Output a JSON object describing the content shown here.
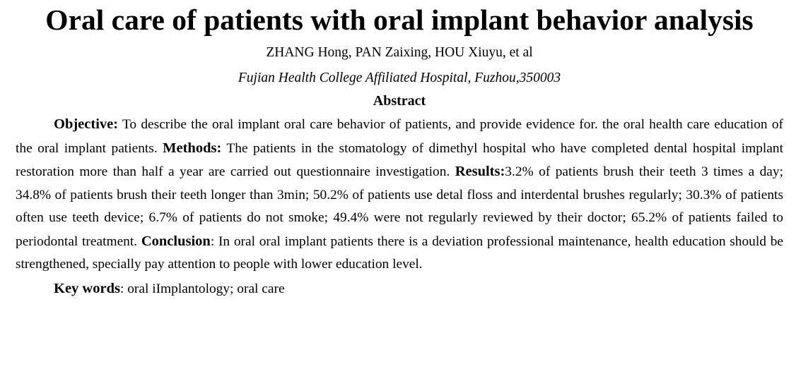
{
  "paper": {
    "title": "Oral care of patients with oral implant behavior analysis",
    "authors": "ZHANG Hong, PAN Zaixing, HOU Xiuyu, et al",
    "affiliation": "Fujian Health College Affiliated Hospital, Fuzhou,350003",
    "abstract_heading": "Abstract",
    "abstract": {
      "objective_label": "Objective:",
      "objective_text": " To describe the oral implant oral care behavior of patients, and provide evidence for. the oral health care education of the oral implant patients. ",
      "methods_label": "Methods:",
      "methods_text": " The patients in the stomatology of dimethyl hospital who have completed dental hospital implant restoration more than half a year are carried out questionnaire investigation. ",
      "results_label": "Results:",
      "results_text": "3.2% of patients brush their teeth 3 times a day; 34.8% of patients brush their teeth longer than 3min; 50.2% of patients use detal floss and interdental brushes regularly; 30.3% of patients often use teeth device; 6.7% of patients do not smoke; 49.4% were not regularly reviewed by their doctor; 65.2% of patients failed to periodontal treatment. ",
      "conclusion_label": "Conclusion",
      "conclusion_sep": ": ",
      "conclusion_text": "In oral oral implant patients there is a deviation professional maintenance, health education should be strengthened, specially pay  attention to people with lower education level."
    },
    "keywords_label": "Key words",
    "keywords_sep": ": ",
    "keywords_text": "oral iImplantology; oral care"
  }
}
